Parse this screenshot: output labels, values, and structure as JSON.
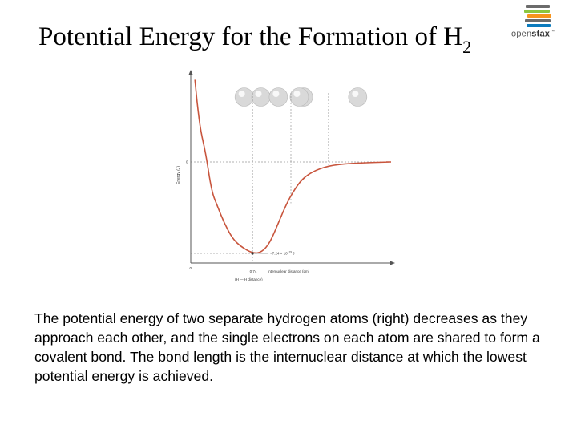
{
  "slide": {
    "title_main": "Potential Energy for the Formation of H",
    "title_sub": "2",
    "caption": "The potential energy of two separate hydrogen atoms (right) decreases as they approach each other, and the single electrons on each atom are shared to form a covalent bond. The bond length is the internuclear distance at which the lowest potential energy is achieved."
  },
  "logo": {
    "text_light": "open",
    "text_bold": "stax",
    "mark": "™",
    "stripe_colors": [
      "#6b6b6b",
      "#8cc63f",
      "#f7941d",
      "#6b6b6b",
      "#0c7bbd"
    ]
  },
  "chart_data": {
    "type": "line",
    "title": "",
    "xlabel": "Internuclear distance (pm)",
    "ylabel": "Energy (J)",
    "x_axis_extra_label": "(H — H distance)",
    "x_tick_labels": [
      "0",
      "0.74"
    ],
    "y_tick_labels": [
      "0"
    ],
    "annotation": {
      "text_main": "−7.24 × 10",
      "text_exp": "−19",
      "text_unit": " J"
    },
    "curve_color": "#c8553d",
    "atom_color": "#d9d9d9",
    "series": [
      {
        "points": [
          [
            0.05,
            3.8
          ],
          [
            0.08,
            2.6
          ],
          [
            0.12,
            1.4
          ],
          [
            0.18,
            0.4
          ],
          [
            0.25,
            -0.3
          ],
          [
            0.32,
            -0.45
          ],
          [
            0.4,
            -0.62
          ],
          [
            0.5,
            -0.78
          ],
          [
            0.6,
            -0.86
          ],
          [
            0.74,
            -0.93
          ],
          [
            0.85,
            -0.92
          ],
          [
            0.95,
            -0.82
          ],
          [
            1.05,
            -0.62
          ],
          [
            1.15,
            -0.42
          ],
          [
            1.25,
            -0.27
          ],
          [
            1.35,
            -0.16
          ],
          [
            1.5,
            -0.08
          ],
          [
            1.7,
            -0.03
          ],
          [
            2.0,
            -0.01
          ],
          [
            2.4,
            0.0
          ]
        ]
      }
    ],
    "minimum": {
      "x": 0.74,
      "y": -0.93
    },
    "atom_pairs": [
      {
        "x": 0.74,
        "separation": 0.2
      },
      {
        "x": 1.2,
        "separation": 0.3
      },
      {
        "x": 1.65,
        "separation": 0.7
      }
    ],
    "xlim": [
      0,
      2.4
    ],
    "ylim": [
      -1.1,
      4.0
    ],
    "grid": false
  }
}
